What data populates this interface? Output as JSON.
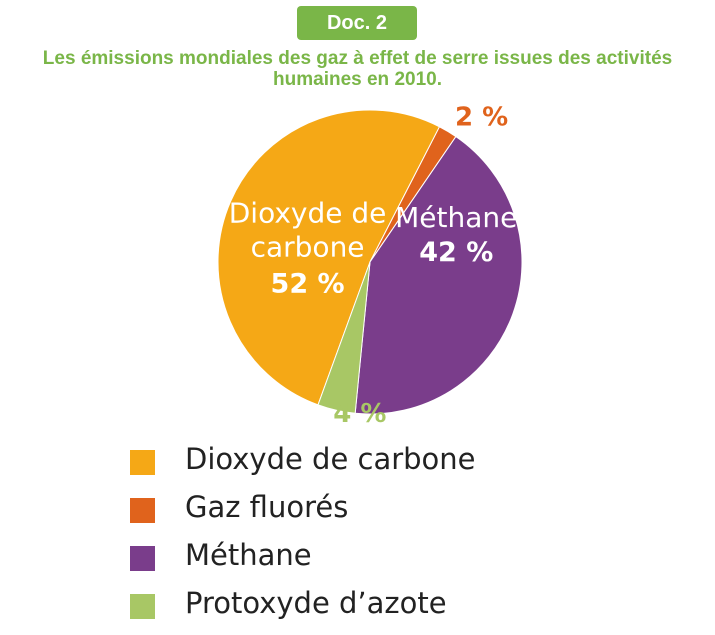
{
  "badge": "Doc. 2",
  "chart_data": {
    "type": "pie",
    "title_lines": [
      "Les émissions mondiales des gaz à effet de serre issues des activités",
      "humaines en 2010."
    ],
    "slices": [
      {
        "name": "Dioxyde de carbone",
        "value": 52,
        "label": "52 %",
        "inside_label_lines": [
          "Dioxyde de",
          "carbone"
        ],
        "color": "#f5a816"
      },
      {
        "name": "Gaz fluorés",
        "value": 2,
        "label": "2 %",
        "color": "#e0631c"
      },
      {
        "name": "Méthane",
        "value": 42,
        "label": "42 %",
        "inside_label_lines": [
          "Méthane"
        ],
        "color": "#7a3d8b"
      },
      {
        "name": "Protoxyde d’azote",
        "value": 4,
        "label": "4 %",
        "color": "#a8c765"
      }
    ],
    "legend": [
      {
        "label": "Dioxyde de carbone",
        "color": "#f5a816"
      },
      {
        "label": "Gaz fluorés",
        "color": "#e0631c"
      },
      {
        "label": "Méthane",
        "color": "#7a3d8b"
      },
      {
        "label": "Protoxyde d’azote",
        "color": "#a8c765"
      }
    ],
    "legend_position": "bottom"
  }
}
